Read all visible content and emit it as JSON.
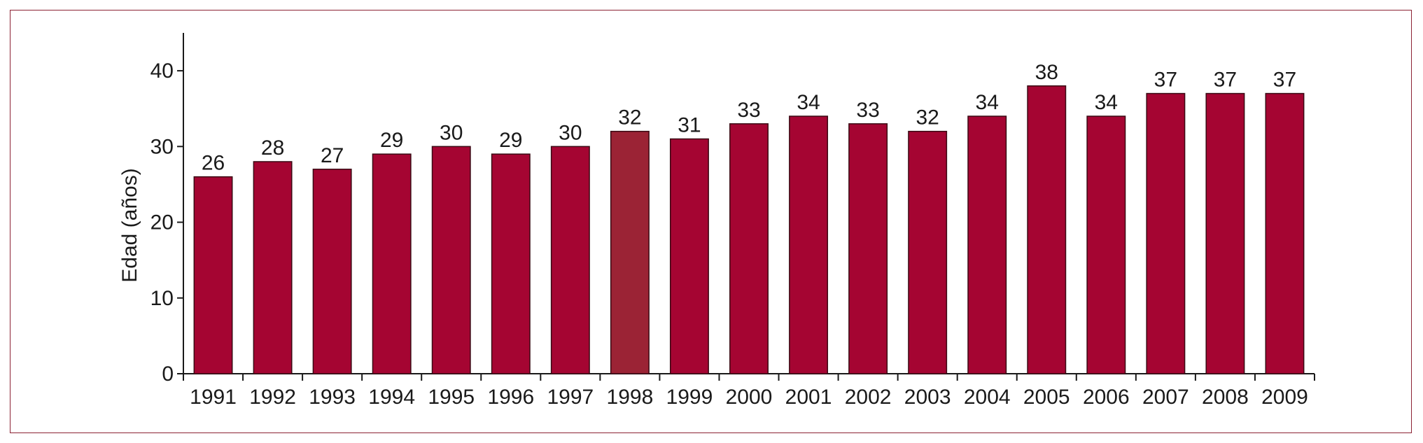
{
  "chart_data": {
    "type": "bar",
    "title": "",
    "xlabel": "",
    "ylabel": "Edad (años)",
    "ylim": [
      0,
      45
    ],
    "yticks": [
      0,
      10,
      20,
      30,
      40
    ],
    "grid": false,
    "legend": "none",
    "categories": [
      "1991",
      "1992",
      "1993",
      "1994",
      "1995",
      "1996",
      "1997",
      "1998",
      "1999",
      "2000",
      "2001",
      "2002",
      "2003",
      "2004",
      "2005",
      "2006",
      "2007",
      "2008",
      "2009"
    ],
    "values": [
      26,
      28,
      27,
      29,
      30,
      29,
      30,
      32,
      31,
      33,
      34,
      33,
      32,
      34,
      38,
      34,
      37,
      37,
      37
    ],
    "highlight_index": 7,
    "colors": {
      "bar": "#a50532",
      "highlight": "#9b2335",
      "frame": "#8c2233",
      "axis": "#1a1a1a"
    }
  }
}
